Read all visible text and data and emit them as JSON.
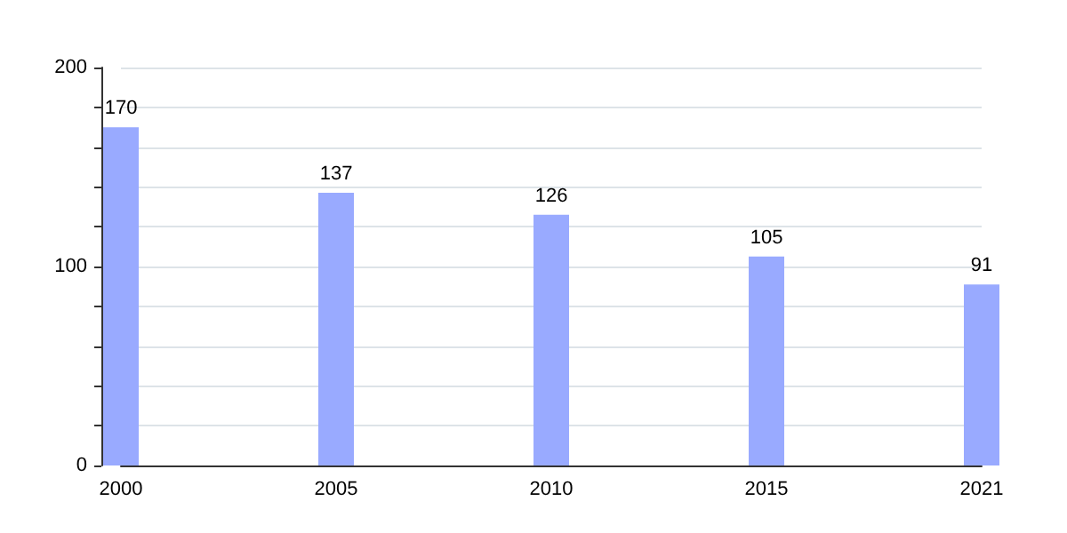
{
  "chart_data": {
    "type": "bar",
    "categories": [
      "2000",
      "2005",
      "2010",
      "2015",
      "2021"
    ],
    "values": [
      170,
      137,
      126,
      105,
      91
    ],
    "color": "#99aaff",
    "data_labels": true,
    "grid": "y",
    "ylim": [
      0,
      200
    ],
    "yticks": [
      0,
      {
        "value": 20,
        "label": null
      },
      {
        "value": 40,
        "label": null
      },
      {
        "value": 60,
        "label": null
      },
      {
        "value": 80,
        "label": null
      },
      100,
      {
        "value": 120,
        "label": null
      },
      {
        "value": 140,
        "label": null
      },
      {
        "value": 160,
        "label": null
      },
      {
        "value": 180,
        "label": null
      },
      200
    ]
  }
}
